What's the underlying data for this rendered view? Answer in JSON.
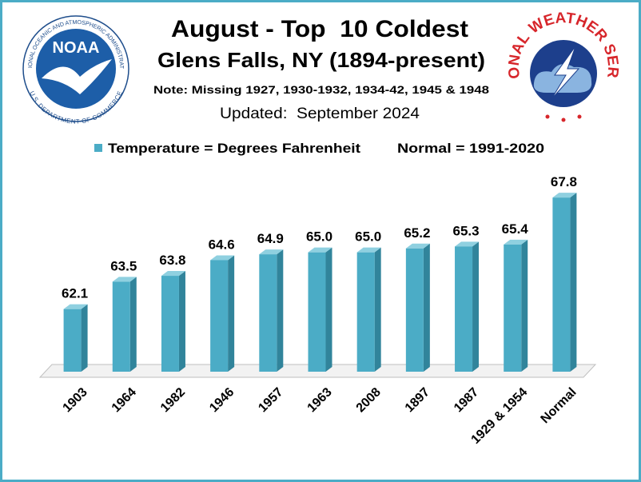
{
  "chart_data": {
    "type": "bar",
    "title": "August - Top  10 Coldest",
    "subtitle": "Glens Falls, NY (1894-present)",
    "note": "Note: Missing 1927, 1930-1932, 1934-42, 1945 & 1948",
    "updated": "Updated:  September 2024",
    "legend": [
      "Temperature = Degrees Fahrenheit",
      "Normal = 1991-2020"
    ],
    "categories": [
      "1903",
      "1964",
      "1982",
      "1946",
      "1957",
      "1963",
      "2008",
      "1897",
      "1987",
      "1929 & 1954",
      "Normal"
    ],
    "values": [
      62.1,
      63.5,
      63.8,
      64.6,
      64.9,
      65.0,
      65.0,
      65.2,
      65.3,
      65.4,
      67.8
    ],
    "value_labels": [
      "62.1",
      "63.5",
      "63.8",
      "64.6",
      "64.9",
      "65.0",
      "65.0",
      "65.2",
      "65.3",
      "65.4",
      "67.8"
    ],
    "color": "#4bacc6",
    "ylim": [
      58.9,
      68.5
    ],
    "logos": {
      "noaa": "NOAA",
      "noaa_ring_top": "NATIONAL OCEANIC AND ATMOSPHERIC ADMINISTRATION",
      "noaa_ring_bottom": "U.S. DEPARTMENT OF COMMERCE",
      "nws": "NATIONAL WEATHER SERVICE"
    }
  }
}
